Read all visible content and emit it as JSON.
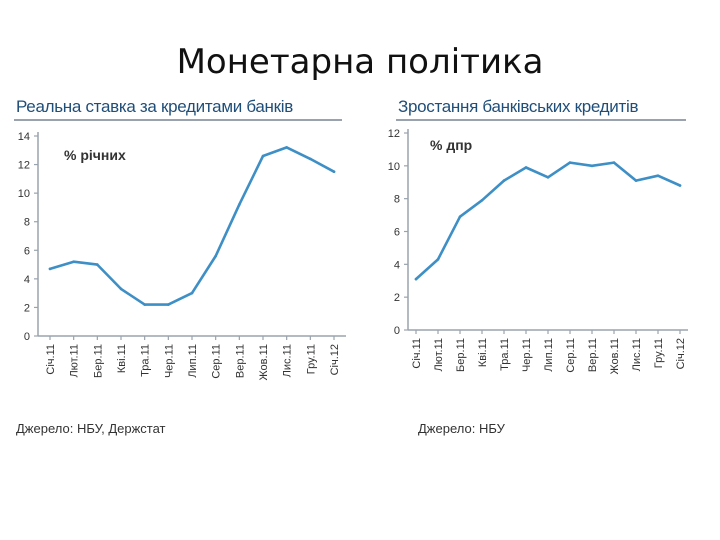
{
  "slide": {
    "title": "Монетарна політика"
  },
  "chart_data": [
    {
      "type": "line",
      "title": "Реальна ставка за кредитами банків",
      "unit_label": "% річних",
      "source": "Джерело: НБУ, Держстат",
      "categories": [
        "Січ.11",
        "Лют.11",
        "Бер.11",
        "Кві.11",
        "Тра.11",
        "Чер.11",
        "Лип.11",
        "Сер.11",
        "Вер.11",
        "Жов.11",
        "Лис.11",
        "Гру.11",
        "Січ.12"
      ],
      "values": [
        4.7,
        5.2,
        5.0,
        3.3,
        2.2,
        2.2,
        3.0,
        5.6,
        9.2,
        12.6,
        13.2,
        12.4,
        11.5
      ],
      "yticks": [
        "0",
        "2",
        "4",
        "6",
        "8",
        "10",
        "12",
        "14"
      ],
      "ylim": [
        0,
        14
      ],
      "grid": false,
      "color": "#3d8fc6"
    },
    {
      "type": "line",
      "title": "Зростання банківських кредитів",
      "unit_label": "% дпр",
      "source": "Джерело: НБУ",
      "categories": [
        "Січ.11",
        "Лют.11",
        "Бер.11",
        "Кві.11",
        "Тра.11",
        "Чер.11",
        "Лип.11",
        "Сер.11",
        "Вер.11",
        "Жов.11",
        "Лис.11",
        "Гру.11",
        "Січ.12"
      ],
      "values": [
        3.1,
        4.3,
        6.9,
        7.9,
        9.1,
        9.9,
        9.3,
        10.2,
        10.0,
        10.2,
        9.1,
        9.4,
        8.8
      ],
      "yticks": [
        "0",
        "2",
        "4",
        "6",
        "8",
        "10",
        "12"
      ],
      "ylim": [
        0,
        12
      ],
      "grid": false,
      "color": "#3d8fc6"
    }
  ]
}
